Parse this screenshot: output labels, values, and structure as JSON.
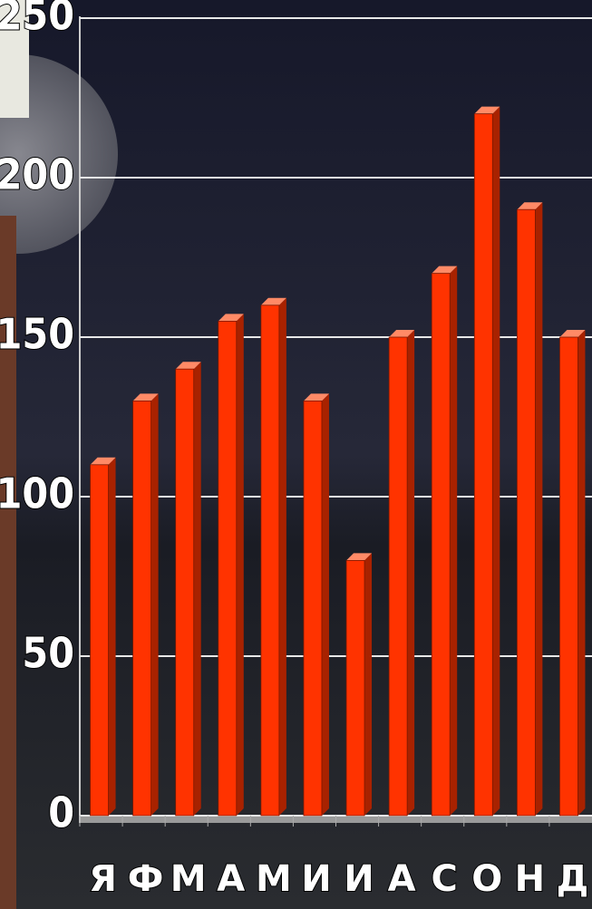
{
  "chart_data": {
    "type": "bar",
    "categories": [
      "Я",
      "Ф",
      "М",
      "А",
      "М",
      "И",
      "И",
      "А",
      "С",
      "О",
      "Н",
      "Д"
    ],
    "values": [
      110,
      130,
      140,
      155,
      160,
      130,
      80,
      150,
      170,
      220,
      190,
      150
    ],
    "color": "#ff3300",
    "ylim": [
      0,
      250
    ],
    "yticks": [
      0,
      50,
      100,
      150,
      200,
      250
    ],
    "grid": true
  }
}
